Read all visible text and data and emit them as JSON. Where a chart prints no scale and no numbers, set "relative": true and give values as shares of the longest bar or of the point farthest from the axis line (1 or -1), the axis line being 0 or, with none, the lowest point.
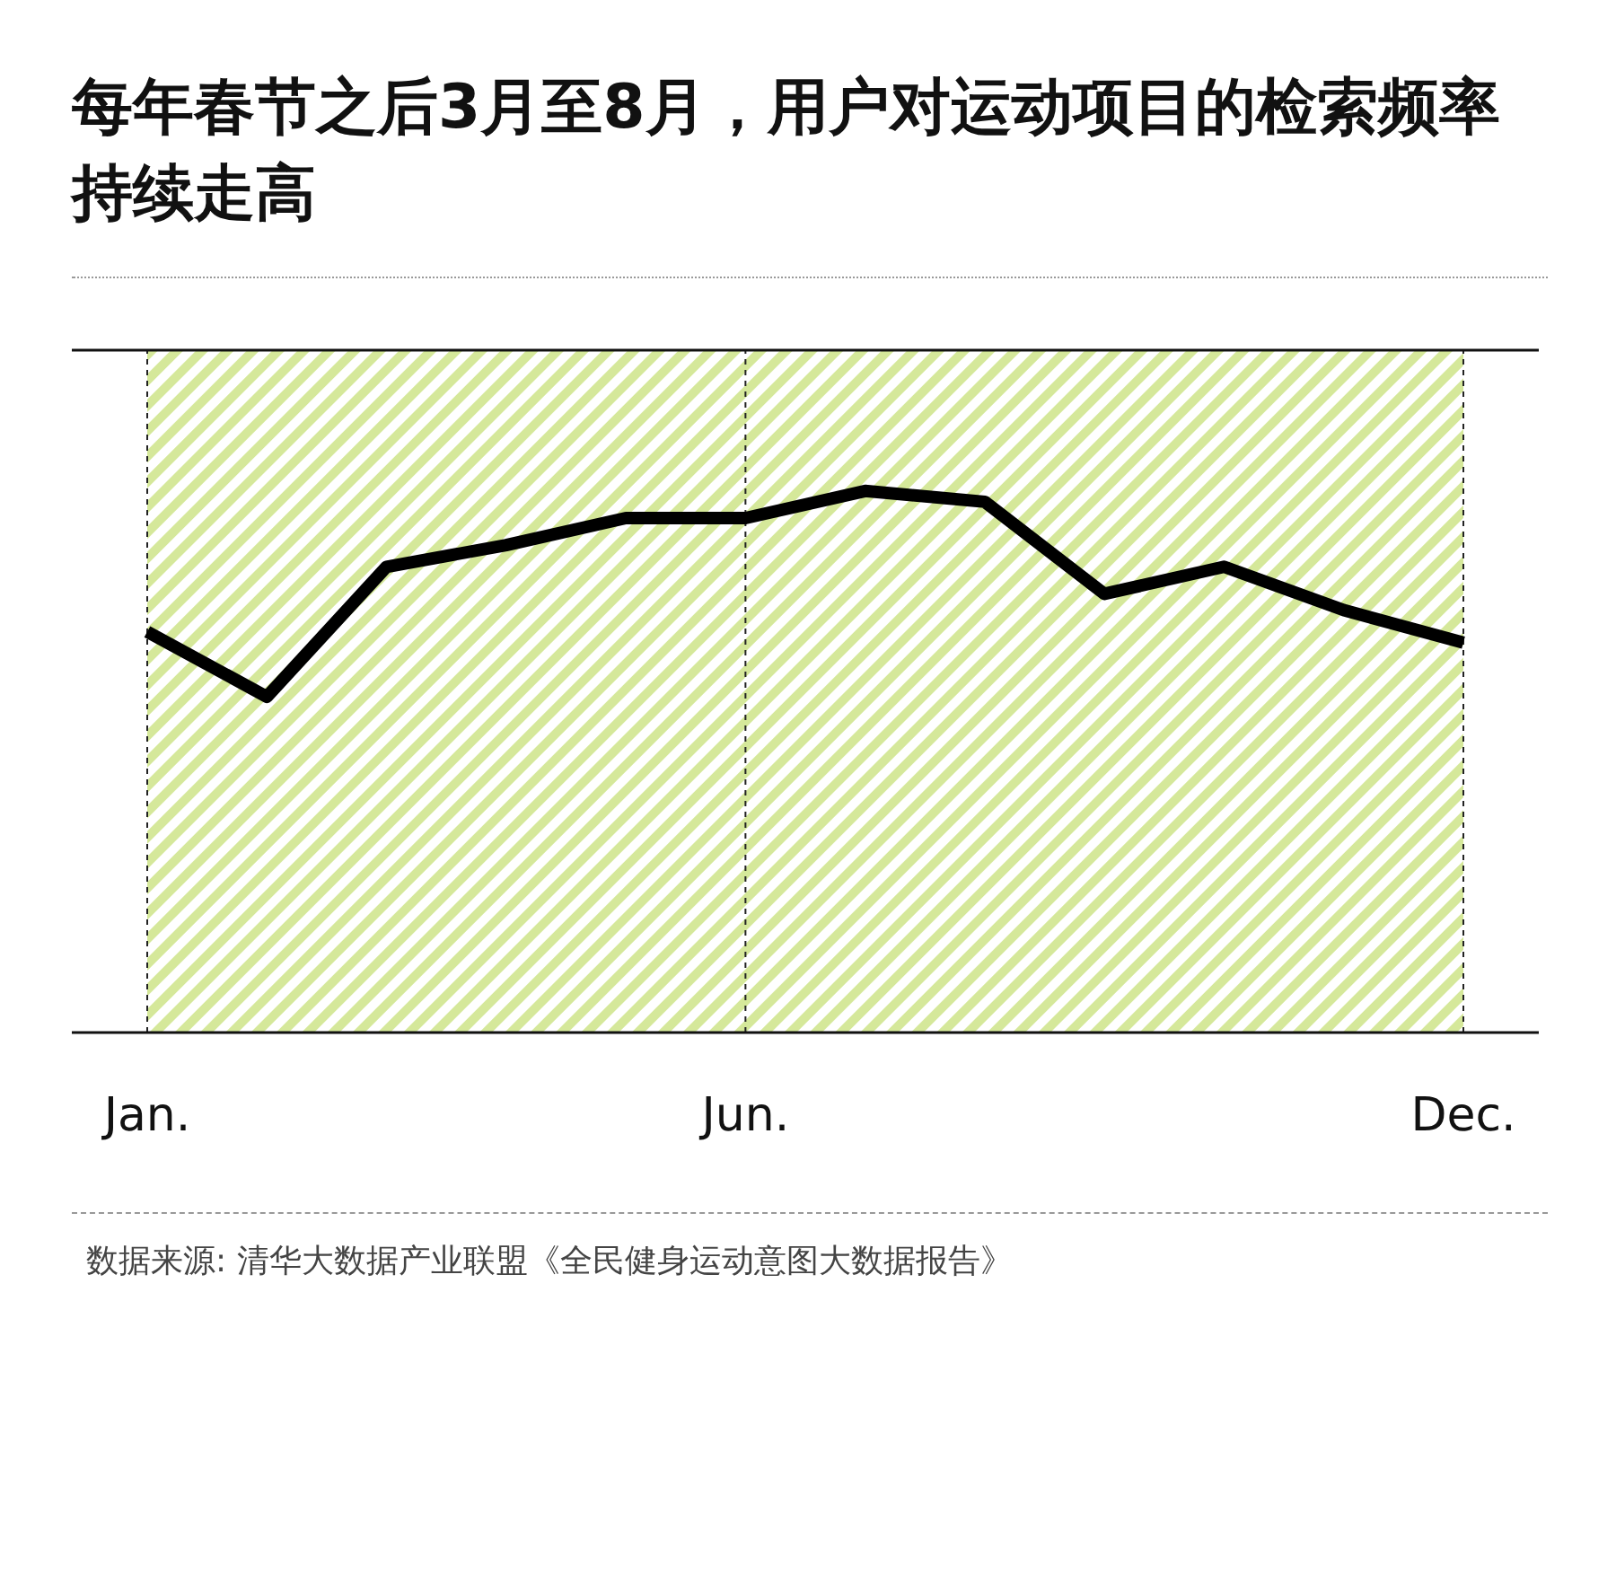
{
  "chart_data": {
    "type": "line",
    "title": "每年春节之后3月至8月，用户对运动项目的检索频率持续走高",
    "categories": [
      "Jan.",
      null,
      null,
      null,
      null,
      "Jun.",
      null,
      null,
      null,
      null,
      null,
      "Dec."
    ],
    "relative": true,
    "series": [
      {
        "color": "#000000",
        "values": [
          0.74,
          0.62,
          0.86,
          0.9,
          0.95,
          0.95,
          1,
          0.98,
          0.81,
          0.86,
          0.78,
          0.72
        ]
      }
    ],
    "bands": [
      {
        "axis": "x",
        "from": "Jan.",
        "to": "Dec.",
        "color": "#d5e89a"
      }
    ],
    "grid": "x",
    "marker": "none",
    "line_style": "solid",
    "annotations": [
      "数据来源: 清华大数据产业联盟《全民健身运动意图大数据报告》"
    ]
  }
}
